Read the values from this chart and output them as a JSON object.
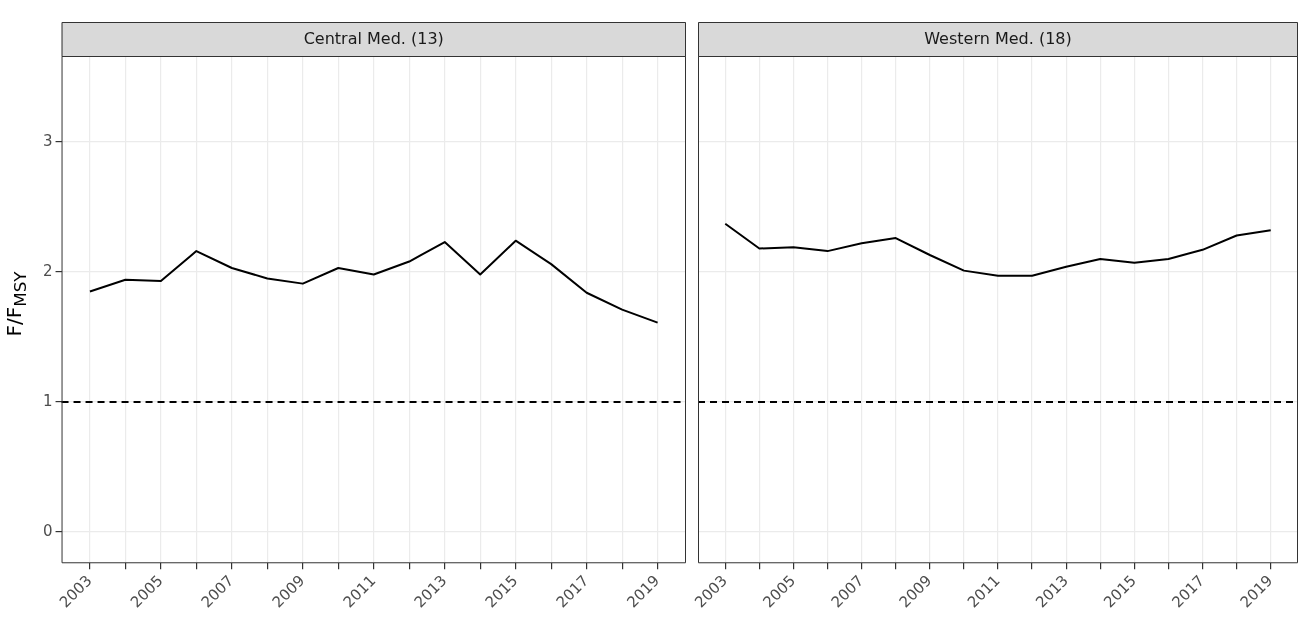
{
  "chart_data": [
    {
      "type": "line",
      "title": "Central Med. (13)",
      "ylabel": "F/F$_{MSY}$",
      "x": [
        2003,
        2004,
        2005,
        2006,
        2007,
        2008,
        2009,
        2010,
        2011,
        2012,
        2013,
        2014,
        2015,
        2016,
        2017,
        2018,
        2019
      ],
      "series": [
        {
          "color": "#000000",
          "values": [
            1.85,
            1.94,
            1.93,
            2.16,
            2.03,
            1.95,
            1.91,
            2.03,
            1.98,
            2.08,
            2.23,
            1.98,
            2.24,
            2.06,
            1.84,
            1.71,
            1.61
          ]
        }
      ],
      "xlim": [
        2002.2,
        2019.8
      ],
      "ylim": [
        -0.24,
        3.66
      ],
      "xticks": [
        2003,
        {
          "value": 2004,
          "label": null
        },
        2005,
        {
          "value": 2006,
          "label": null
        },
        2007,
        {
          "value": 2008,
          "label": null
        },
        2009,
        {
          "value": 2010,
          "label": null
        },
        2011,
        {
          "value": 2012,
          "label": null
        },
        2013,
        {
          "value": 2014,
          "label": null
        },
        2015,
        {
          "value": 2016,
          "label": null
        },
        2017,
        {
          "value": 2018,
          "label": null
        },
        2019
      ],
      "yticks": [
        0,
        1,
        2,
        3
      ],
      "ref_lines": [
        {
          "axis": "y",
          "value": 1,
          "color": "#000000",
          "line_style": "dashed"
        }
      ],
      "grid": true,
      "legend": false,
      "marker": "none",
      "line_style": "solid"
    },
    {
      "type": "line",
      "title": "Western Med. (18)",
      "x": [
        2003,
        2004,
        2005,
        2006,
        2007,
        2008,
        2009,
        2010,
        2011,
        2012,
        2013,
        2014,
        2015,
        2016,
        2017,
        2018,
        2019
      ],
      "series": [
        {
          "color": "#000000",
          "values": [
            2.37,
            2.18,
            2.19,
            2.16,
            2.22,
            2.26,
            2.13,
            2.01,
            1.97,
            1.97,
            2.04,
            2.1,
            2.07,
            2.1,
            2.17,
            2.28,
            2.32
          ]
        }
      ],
      "xlim": [
        2002.2,
        2019.8
      ],
      "ylim": [
        -0.24,
        3.66
      ],
      "xticks": [
        2003,
        {
          "value": 2004,
          "label": null
        },
        2005,
        {
          "value": 2006,
          "label": null
        },
        2007,
        {
          "value": 2008,
          "label": null
        },
        2009,
        {
          "value": 2010,
          "label": null
        },
        2011,
        {
          "value": 2012,
          "label": null
        },
        2013,
        {
          "value": 2014,
          "label": null
        },
        2015,
        {
          "value": 2016,
          "label": null
        },
        2017,
        {
          "value": 2018,
          "label": null
        },
        2019
      ],
      "yticks": [
        0,
        1,
        2,
        3
      ],
      "tick_labels": "x",
      "ref_lines": [
        {
          "axis": "y",
          "value": 1,
          "color": "#000000",
          "line_style": "dashed"
        }
      ],
      "grid": true,
      "legend": false,
      "marker": "none",
      "line_style": "solid"
    }
  ]
}
